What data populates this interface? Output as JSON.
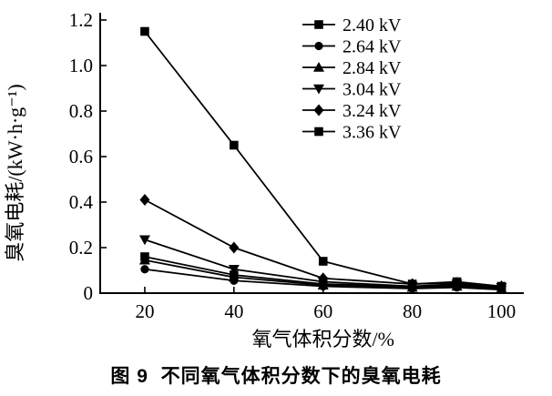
{
  "figure": {
    "caption": "图 9  不同氧气体积分数下的臭氧电耗"
  },
  "chart_data": {
    "type": "line",
    "title": "",
    "xlabel": "氧气体积分数/%",
    "ylabel": "臭氧电耗/(kW·h·g⁻¹)",
    "x": [
      20,
      40,
      60,
      80,
      90,
      100
    ],
    "series": [
      {
        "name": "2.40 kV",
        "marker": "square",
        "values": [
          0.16,
          0.08,
          0.04,
          0.03,
          0.035,
          0.025
        ]
      },
      {
        "name": "2.64 kV",
        "marker": "circle",
        "values": [
          0.105,
          0.055,
          0.03,
          0.02,
          0.025,
          0.015
        ]
      },
      {
        "name": "2.84 kV",
        "marker": "triangle-up",
        "values": [
          0.145,
          0.07,
          0.035,
          0.025,
          0.03,
          0.02
        ]
      },
      {
        "name": "3.04 kV",
        "marker": "triangle-down",
        "values": [
          0.235,
          0.105,
          0.05,
          0.03,
          0.04,
          0.025
        ]
      },
      {
        "name": "3.24 kV",
        "marker": "diamond",
        "values": [
          0.41,
          0.2,
          0.065,
          0.04,
          0.045,
          0.03
        ]
      },
      {
        "name": "3.36 kV",
        "marker": "square",
        "values": [
          1.15,
          0.65,
          0.14,
          0.04,
          0.05,
          0.03
        ]
      }
    ],
    "xlim": [
      10,
      105
    ],
    "ylim": [
      0,
      1.2
    ],
    "x_ticks": [
      20,
      40,
      60,
      80,
      100
    ],
    "x_tick_labels": [
      "20",
      "40",
      "60",
      "80",
      "100"
    ],
    "y_ticks": [
      0,
      0.2,
      0.4,
      0.6,
      0.8,
      1.0,
      1.2
    ],
    "y_tick_labels": [
      "0",
      "0.2",
      "0.4",
      "0.6",
      "0.8",
      "1.0",
      "1.2"
    ],
    "grid": false,
    "legend_position": "top-right",
    "line_color": "#000000",
    "marker_color": "#000000",
    "background": "#ffffff"
  }
}
